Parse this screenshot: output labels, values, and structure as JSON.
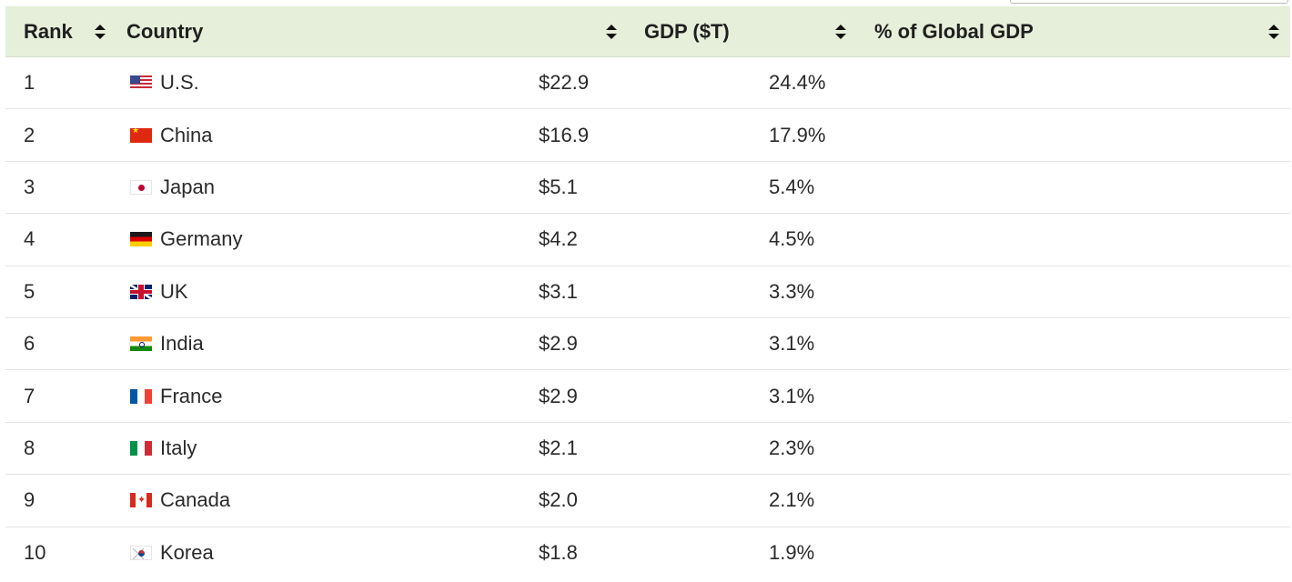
{
  "table": {
    "columns": [
      {
        "label": "Rank"
      },
      {
        "label": "Country"
      },
      {
        "label": "GDP ($T)"
      },
      {
        "label": "% of Global GDP"
      }
    ],
    "rows": [
      {
        "rank": "1",
        "flag": "us-flag-icon",
        "country": "U.S.",
        "gdp": "$22.9",
        "share": "24.4%"
      },
      {
        "rank": "2",
        "flag": "china-flag-icon",
        "country": "China",
        "gdp": "$16.9",
        "share": "17.9%"
      },
      {
        "rank": "3",
        "flag": "japan-flag-icon",
        "country": "Japan",
        "gdp": "$5.1",
        "share": "5.4%"
      },
      {
        "rank": "4",
        "flag": "germany-flag-icon",
        "country": "Germany",
        "gdp": "$4.2",
        "share": "4.5%"
      },
      {
        "rank": "5",
        "flag": "uk-flag-icon",
        "country": "UK",
        "gdp": "$3.1",
        "share": "3.3%"
      },
      {
        "rank": "6",
        "flag": "india-flag-icon",
        "country": "India",
        "gdp": "$2.9",
        "share": "3.1%"
      },
      {
        "rank": "7",
        "flag": "france-flag-icon",
        "country": "France",
        "gdp": "$2.9",
        "share": "3.1%"
      },
      {
        "rank": "8",
        "flag": "italy-flag-icon",
        "country": "Italy",
        "gdp": "$2.1",
        "share": "2.3%"
      },
      {
        "rank": "9",
        "flag": "canada-flag-icon",
        "country": "Canada",
        "gdp": "$2.0",
        "share": "2.1%"
      },
      {
        "rank": "10",
        "flag": "korea-flag-icon",
        "country": "Korea",
        "gdp": "$1.8",
        "share": "1.9%"
      }
    ]
  },
  "colors": {
    "header_bg": "#e6efd9",
    "row_divider": "#e3e3e3",
    "text": "#2a2a2a"
  }
}
